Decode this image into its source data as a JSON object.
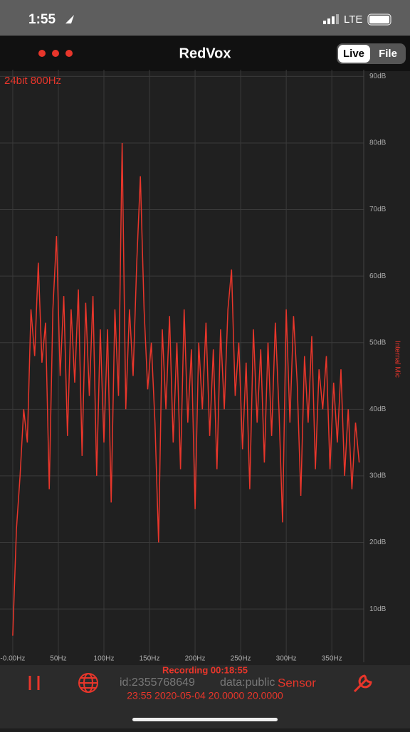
{
  "status_bar": {
    "time": "1:55",
    "network": "LTE"
  },
  "nav": {
    "title": "RedVox",
    "toggle": [
      "Live",
      "File"
    ]
  },
  "chart_data": {
    "type": "line",
    "subtitle": "24bit 800Hz",
    "y_label": "Internal Mic",
    "color": "#e8362b",
    "grid": true,
    "xlim": [
      -14,
      385
    ],
    "ylim": [
      2,
      91
    ],
    "xticks": [
      {
        "value": 0,
        "label": "-0.00Hz"
      },
      {
        "value": 50,
        "label": "50Hz"
      },
      {
        "value": 100,
        "label": "100Hz"
      },
      {
        "value": 150,
        "label": "150Hz"
      },
      {
        "value": 200,
        "label": "200Hz"
      },
      {
        "value": 250,
        "label": "250Hz"
      },
      {
        "value": 300,
        "label": "300Hz"
      },
      {
        "value": 350,
        "label": "350Hz"
      }
    ],
    "yticks": [
      {
        "value": 10,
        "label": "10dB"
      },
      {
        "value": 20,
        "label": "20dB"
      },
      {
        "value": 30,
        "label": "30dB"
      },
      {
        "value": 40,
        "label": "40dB"
      },
      {
        "value": 50,
        "label": "50dB"
      },
      {
        "value": 60,
        "label": "60dB"
      },
      {
        "value": 70,
        "label": "70dB"
      },
      {
        "value": 80,
        "label": "80dB"
      },
      {
        "value": 90,
        "label": "90dB"
      }
    ],
    "x": [
      0,
      4,
      8,
      12,
      16,
      20,
      24,
      28,
      32,
      36,
      40,
      44,
      48,
      52,
      56,
      60,
      64,
      68,
      72,
      76,
      80,
      84,
      88,
      92,
      96,
      100,
      104,
      108,
      112,
      116,
      120,
      124,
      128,
      132,
      136,
      140,
      144,
      148,
      152,
      156,
      160,
      164,
      168,
      172,
      176,
      180,
      184,
      188,
      192,
      196,
      200,
      204,
      208,
      212,
      216,
      220,
      224,
      228,
      232,
      236,
      240,
      244,
      248,
      252,
      256,
      260,
      264,
      268,
      272,
      276,
      280,
      284,
      288,
      292,
      296,
      300,
      304,
      308,
      312,
      316,
      320,
      324,
      328,
      332,
      336,
      340,
      344,
      348,
      352,
      356,
      360,
      364,
      368,
      372,
      376,
      380
    ],
    "values": [
      6,
      22,
      30,
      40,
      35,
      55,
      48,
      62,
      47,
      53,
      28,
      55,
      66,
      45,
      57,
      36,
      55,
      44,
      58,
      33,
      56,
      42,
      57,
      30,
      52,
      35,
      52,
      26,
      55,
      42,
      80,
      40,
      55,
      45,
      62,
      75,
      55,
      43,
      50,
      38,
      20,
      52,
      40,
      54,
      35,
      50,
      31,
      55,
      38,
      49,
      25,
      50,
      40,
      53,
      36,
      49,
      31,
      52,
      40,
      55,
      61,
      42,
      50,
      34,
      47,
      28,
      52,
      38,
      49,
      32,
      50,
      36,
      53,
      40,
      23,
      55,
      38,
      54,
      44,
      27,
      48,
      38,
      51,
      31,
      46,
      40,
      48,
      31,
      44,
      35,
      46,
      30,
      40,
      28,
      38,
      32
    ]
  },
  "footer": {
    "recording": "Recording 00:18:55",
    "id": "id:2355768649",
    "data": "data:public",
    "sensor": "Sensor",
    "timestamp": "23:55 2020-05-04 20.0000 20.0000"
  }
}
